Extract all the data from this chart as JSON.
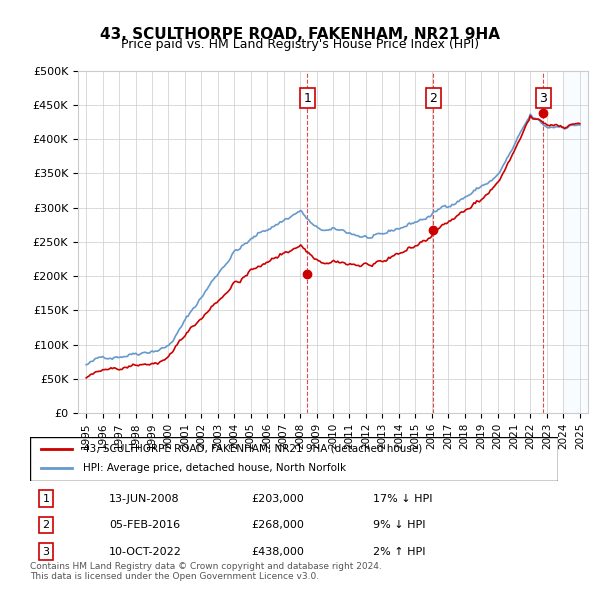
{
  "title": "43, SCULTHORPE ROAD, FAKENHAM, NR21 9HA",
  "subtitle": "Price paid vs. HM Land Registry's House Price Index (HPI)",
  "hpi_color": "#6699cc",
  "price_color": "#cc0000",
  "sale_marker_color": "#cc0000",
  "vline_color": "#cc0000",
  "shade_color": "#ddeeff",
  "ylim": [
    0,
    500000
  ],
  "yticks": [
    0,
    50000,
    100000,
    150000,
    200000,
    250000,
    300000,
    350000,
    400000,
    450000,
    500000
  ],
  "sales": [
    {
      "label": "1",
      "date": 2008.45,
      "price": 203000,
      "date_str": "13-JUN-2008",
      "pct": "17%",
      "dir": "↓"
    },
    {
      "label": "2",
      "date": 2016.09,
      "price": 268000,
      "date_str": "05-FEB-2016",
      "pct": "9%",
      "dir": "↓"
    },
    {
      "label": "3",
      "date": 2022.78,
      "price": 438000,
      "date_str": "10-OCT-2022",
      "pct": "2%",
      "dir": "↑"
    }
  ],
  "legend_property_label": "43, SCULTHORPE ROAD, FAKENHAM, NR21 9HA (detached house)",
  "legend_hpi_label": "HPI: Average price, detached house, North Norfolk",
  "footnote": "Contains HM Land Registry data © Crown copyright and database right 2024.\nThis data is licensed under the Open Government Licence v3.0.",
  "xmin": 1994.5,
  "xmax": 2025.5
}
